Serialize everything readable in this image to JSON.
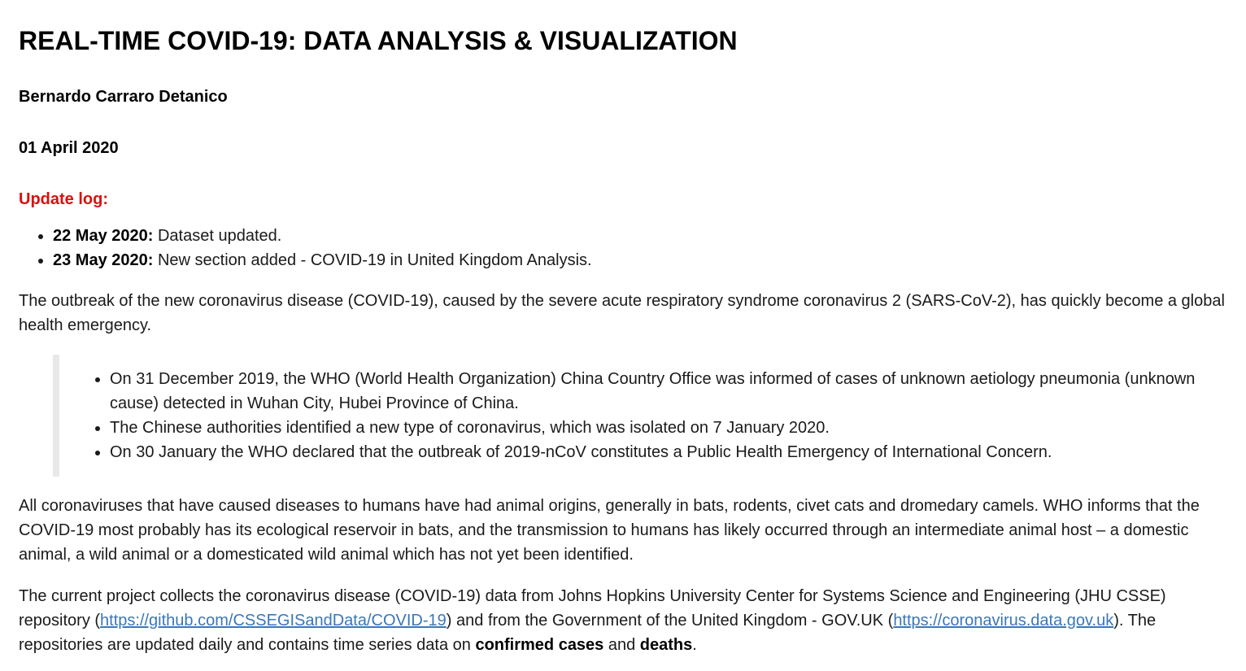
{
  "title": "REAL-TIME COVID-19: DATA ANALYSIS & VISUALIZATION",
  "author": "Bernardo Carraro Detanico",
  "date": "01 April 2020",
  "update_log": {
    "heading": "Update log:",
    "items": [
      {
        "date": "22 May 2020:",
        "text": " Dataset updated."
      },
      {
        "date": "23 May 2020:",
        "text": " New section added - COVID-19 in United Kingdom Analysis."
      }
    ]
  },
  "intro": "The outbreak of the new coronavirus disease (COVID-19), caused by the severe acute respiratory syndrome coronavirus 2 (SARS-CoV-2), has quickly become a global health emergency.",
  "quote_items": [
    "On 31 December 2019, the WHO (World Health Organization) China Country Office was informed of cases of unknown aetiology pneumonia (unknown cause) detected in Wuhan City, Hubei Province of China.",
    "The Chinese authorities identified a new type of coronavirus, which was isolated on 7 January 2020.",
    "On 30 January the WHO declared that the outbreak of 2019-nCoV constitutes a Public Health Emergency of International Concern."
  ],
  "origins": "All coronaviruses that have caused diseases to humans have had animal origins, generally in bats, rodents, civet cats and dromedary camels. WHO informs that the COVID-19 most probably has its ecological reservoir in bats, and the transmission to humans has likely occurred through an intermediate animal host – a domestic animal, a wild animal or a domesticated wild animal which has not yet been identified.",
  "project": {
    "t1": "The current project collects the coronavirus disease (COVID-19) data from Johns Hopkins University Center for Systems Science and Engineering (JHU CSSE) repository (",
    "link1": "https://github.com/CSSEGISandData/COVID-19",
    "t2": ") and from the Government of the United Kingdom - GOV.UK (",
    "link2": "https://coronavirus.data.gov.uk",
    "t3": "). The repositories are updated daily and contains time series data on ",
    "bold1": "confirmed cases",
    "t4": " and ",
    "bold2": "deaths",
    "t5": "."
  }
}
